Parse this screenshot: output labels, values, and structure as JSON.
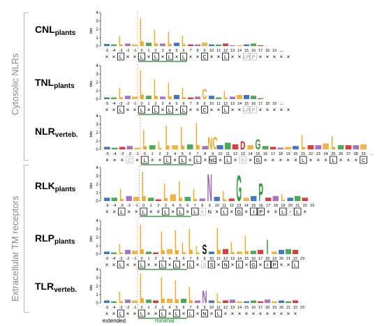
{
  "groups": [
    {
      "label": "Cytosolic NLRs"
    },
    {
      "label": "Extracellular TM receptors"
    }
  ],
  "rows": [
    {
      "name": "CNL",
      "sub": "plants",
      "n": 27,
      "seq": [
        "×",
        "×",
        "L",
        "×",
        "×",
        "L",
        "×",
        "L",
        "×",
        "L",
        "×",
        "L",
        "×",
        "×",
        "C",
        "×",
        "×",
        "L",
        "×",
        "×",
        "LP",
        "P",
        "×",
        "×",
        "×",
        "×",
        "×"
      ],
      "boxed": [
        2,
        5,
        7,
        9,
        11,
        14,
        17
      ],
      "grey": [
        20,
        21
      ],
      "dots": true,
      "heights": [
        0.25,
        0.2,
        1.3,
        0.3,
        0.2,
        3.5,
        0.4,
        2.0,
        0.3,
        1.8,
        0.4,
        1.3,
        0.2,
        0.2,
        0.4,
        0.2,
        0.2,
        0.3,
        0.1,
        0.1,
        0.2,
        0.3,
        0.1
      ]
    },
    {
      "name": "TNL",
      "sub": "plants",
      "n": 27,
      "seq": [
        "×",
        "×",
        "L",
        "×",
        "×",
        "L",
        "×",
        "L",
        "×",
        "L",
        "×",
        "L",
        "×",
        "×",
        "C",
        "×",
        "×",
        "L",
        "×",
        "×",
        "LP",
        "P",
        "×",
        "×",
        "×",
        "×",
        "×"
      ],
      "boxed": [
        2,
        5,
        7,
        9,
        11,
        14,
        17
      ],
      "grey": [
        20,
        21
      ],
      "dots": true,
      "heights": [
        0.2,
        0.2,
        1.4,
        0.4,
        0.3,
        3.6,
        0.4,
        2.5,
        0.3,
        2.1,
        0.5,
        1.4,
        0.2,
        0.3,
        1.3,
        0.4,
        0.2,
        1.0,
        0.3,
        0.5,
        0.5,
        0.4,
        0.1
      ]
    },
    {
      "name": "NLR",
      "sub": "verteb.",
      "n": 35,
      "seq": [
        "×",
        "×",
        "×",
        "C",
        "×",
        "L",
        "×",
        "×",
        "L",
        "×",
        "L",
        "×",
        "L",
        "×",
        "NC",
        "×",
        "L",
        "×",
        "D",
        "×",
        "G",
        "×",
        "×",
        "×",
        "×",
        "×",
        "L",
        "×",
        "×",
        "×",
        "L",
        "×",
        "×",
        "×",
        "C"
      ],
      "boxed": [
        5,
        8,
        10,
        12,
        14,
        16,
        20,
        26,
        30,
        34
      ],
      "grey": [
        3,
        18
      ],
      "dots": false,
      "heights": [
        0.3,
        0.2,
        0.3,
        0.4,
        0.2,
        2.5,
        0.5,
        1.0,
        3.0,
        0.5,
        2.8,
        0.6,
        3.4,
        0.4,
        1.5,
        0.5,
        0.8,
        0.6,
        1.0,
        0.5,
        1.3,
        0.4,
        0.3,
        0.2,
        0.3,
        0.4,
        1.8,
        0.5,
        0.5,
        0.7,
        1.7,
        0.5,
        0.5,
        0.5,
        0.6
      ]
    },
    {
      "name": "RLK",
      "sub": "plants",
      "n": 28,
      "seq": [
        "×",
        "×",
        "L",
        "×",
        "×",
        "L",
        "×",
        "×",
        "L",
        "×",
        "L",
        "×",
        "L",
        "×",
        "N",
        "×",
        "L",
        "×",
        "G",
        "×",
        "I",
        "P",
        "×",
        "×",
        "L",
        "×",
        "L",
        "×"
      ],
      "boxed": [
        2,
        5,
        8,
        10,
        12,
        16,
        18,
        20,
        21,
        24,
        26
      ],
      "grey": [
        13,
        25
      ],
      "dots": false,
      "heights": [
        0.4,
        0.4,
        1.5,
        0.6,
        0.5,
        3.7,
        0.4,
        0.2,
        2.2,
        0.8,
        2.5,
        0.5,
        1.5,
        0.3,
        3.4,
        0.5,
        1.3,
        0.3,
        3.2,
        0.4,
        0.6,
        2.2,
        0.4,
        0.6,
        0.9,
        0.4,
        0.6,
        0.4
      ]
    },
    {
      "name": "RLP",
      "sub": "plants",
      "n": 28,
      "seq": [
        "×",
        "×",
        "L",
        "×",
        "×",
        "L",
        "×",
        "×",
        "L",
        "×",
        "L",
        "×",
        "L",
        "×",
        "S",
        "S",
        "×",
        "N",
        "×",
        "L",
        "×",
        "G",
        "×",
        "I",
        "P",
        "×",
        "×",
        "L"
      ],
      "boxed": [
        2,
        5,
        8,
        10,
        12,
        15,
        17,
        19,
        21,
        23,
        24,
        27
      ],
      "grey": [
        14
      ],
      "dots": false,
      "heights": [
        0.3,
        0.2,
        1.3,
        0.5,
        0.4,
        3.7,
        0.3,
        0.2,
        2.9,
        0.6,
        3.0,
        1.4,
        3.2,
        1.0,
        1.2,
        0.3,
        3.3,
        0.6,
        1.5,
        0.3,
        2.3,
        0.4,
        0.5,
        1.8,
        0.3,
        0.5,
        0.6,
        0.5
      ]
    },
    {
      "name": "TLR",
      "sub": "verteb.",
      "n": 28,
      "seq": [
        "×",
        "×",
        "L",
        "×",
        "×",
        "L",
        "×",
        "×",
        "L",
        "×",
        "L",
        "×",
        "L",
        "×",
        "N",
        "×",
        "L",
        "×",
        "×",
        "×",
        "×",
        "×",
        "×",
        "×",
        "×",
        "×",
        "×",
        "×"
      ],
      "boxed": [
        2,
        5,
        8,
        10,
        12,
        14,
        16
      ],
      "grey": [],
      "dots": false,
      "heights": [
        0.3,
        0.2,
        1.4,
        0.4,
        0.3,
        3.7,
        0.4,
        0.3,
        3.3,
        0.5,
        2.8,
        0.5,
        2.0,
        0.3,
        1.5,
        0.3,
        1.2,
        0.3,
        0.4,
        0.2,
        0.2,
        0.3,
        0.2,
        0.4,
        0.2,
        0.3,
        0.2,
        0.3
      ]
    }
  ],
  "axis": {
    "bits_label": "bits",
    "y_ticks": [
      "0",
      "1",
      "2",
      "3",
      "4"
    ],
    "positions_short": [
      "-5",
      "-4",
      "-3",
      "-2",
      "-1",
      "0",
      "1",
      "2",
      "3",
      "4",
      "5",
      "6",
      "7",
      "8",
      "9",
      "10",
      "11",
      "12",
      "13",
      "14",
      "15",
      "16",
      "17",
      "18",
      "19",
      "..."
    ],
    "positions_long": [
      "-5",
      "-4",
      "-3",
      "-2",
      "-1",
      "0",
      "1",
      "2",
      "3",
      "4",
      "5",
      "6",
      "7",
      "8",
      "9",
      "10",
      "11",
      "12",
      "13",
      "14",
      "15",
      "16",
      "17",
      "18",
      "19",
      "20",
      "21",
      "22",
      "23",
      "24",
      "25",
      "26",
      "27",
      "28",
      "29",
      "..."
    ],
    "positions_rlk": [
      "-5",
      "-4",
      "-3",
      "-2",
      "-1",
      "0",
      "1",
      "2",
      "3",
      "4",
      "5",
      "6",
      "7",
      "8",
      "9",
      "10",
      "11",
      "12",
      "13",
      "14",
      "15",
      "16",
      "17",
      "18",
      "19",
      "20",
      "21",
      "22",
      "23"
    ],
    "dots_text": "..."
  },
  "footer": {
    "extended": "extended",
    "minimal": "minimal"
  },
  "colors": {
    "orange": "#f5a623",
    "green": "#2e9b3a",
    "red": "#d7191c",
    "blue": "#1f5fbf",
    "purple": "#9b59b6",
    "black": "#000000",
    "dash": "#f08080",
    "minimal_line": "#1a8a2a",
    "grey": "#bdbdbd"
  }
}
